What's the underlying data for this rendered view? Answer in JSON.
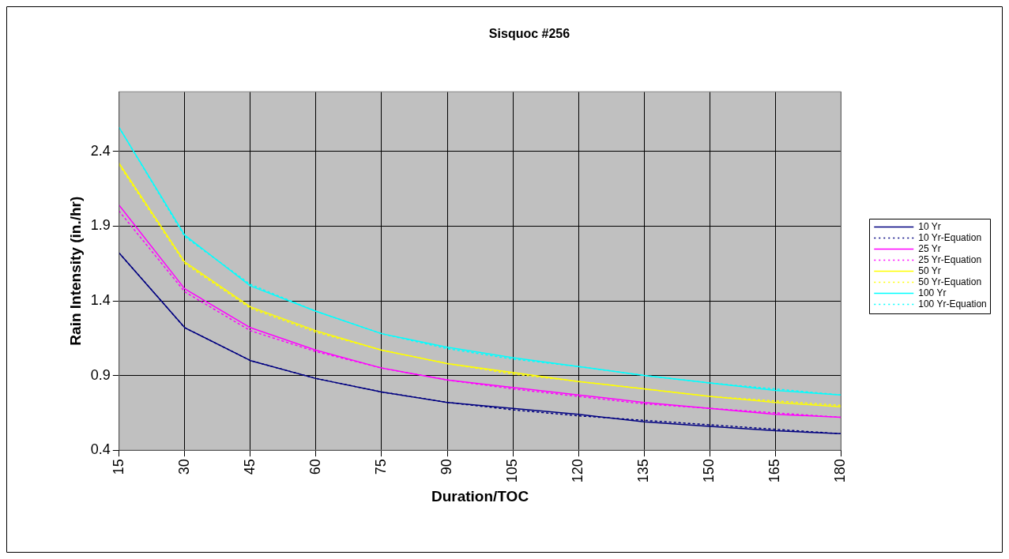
{
  "chart_data": {
    "type": "line",
    "title": "Sisquoc #256",
    "xlabel": "Duration/TOC",
    "ylabel": "Rain Intensity (in./hr)",
    "x": [
      15,
      30,
      45,
      60,
      75,
      90,
      105,
      120,
      135,
      150,
      165,
      180
    ],
    "xlim": [
      15,
      180
    ],
    "xticks": [
      15,
      30,
      45,
      60,
      75,
      90,
      105,
      120,
      135,
      150,
      165,
      180
    ],
    "ylim": [
      0.4,
      2.8
    ],
    "yticks": [
      0.4,
      0.9,
      1.4,
      1.9,
      2.4
    ],
    "grid": true,
    "legend": "right",
    "marker": "none",
    "series": [
      {
        "name": "10 Yr",
        "color": "#000080",
        "line_style": "solid",
        "values": [
          1.72,
          1.22,
          1.0,
          0.88,
          0.79,
          0.72,
          0.68,
          0.64,
          0.59,
          0.56,
          0.53,
          0.51
        ]
      },
      {
        "name": "10 Yr-Equation",
        "color": "#000080",
        "line_style": "dotted",
        "values": [
          1.72,
          1.22,
          1.0,
          0.88,
          0.79,
          0.72,
          0.67,
          0.63,
          0.6,
          0.57,
          0.54,
          0.51
        ]
      },
      {
        "name": "25 Yr",
        "color": "#ff00ff",
        "line_style": "solid",
        "values": [
          2.04,
          1.48,
          1.22,
          1.07,
          0.95,
          0.87,
          0.82,
          0.77,
          0.72,
          0.68,
          0.64,
          0.62
        ]
      },
      {
        "name": "25 Yr-Equation",
        "color": "#ff00ff",
        "line_style": "dotted",
        "values": [
          2.0,
          1.46,
          1.2,
          1.06,
          0.95,
          0.87,
          0.81,
          0.76,
          0.71,
          0.68,
          0.65,
          0.62
        ]
      },
      {
        "name": "50 Yr",
        "color": "#ffff00",
        "line_style": "solid",
        "values": [
          2.32,
          1.66,
          1.36,
          1.2,
          1.07,
          0.98,
          0.92,
          0.86,
          0.81,
          0.76,
          0.72,
          0.69
        ]
      },
      {
        "name": "50 Yr-Equation",
        "color": "#ffff00",
        "line_style": "dotted",
        "values": [
          2.31,
          1.65,
          1.35,
          1.19,
          1.07,
          0.98,
          0.91,
          0.86,
          0.81,
          0.76,
          0.73,
          0.7
        ]
      },
      {
        "name": "100 Yr",
        "color": "#00ffff",
        "line_style": "solid",
        "values": [
          2.56,
          1.84,
          1.5,
          1.33,
          1.18,
          1.09,
          1.02,
          0.96,
          0.9,
          0.85,
          0.8,
          0.77
        ]
      },
      {
        "name": "100 Yr-Equation",
        "color": "#00ffff",
        "line_style": "dotted",
        "values": [
          2.56,
          1.83,
          1.51,
          1.33,
          1.18,
          1.08,
          1.01,
          0.96,
          0.9,
          0.85,
          0.81,
          0.77
        ]
      }
    ]
  }
}
